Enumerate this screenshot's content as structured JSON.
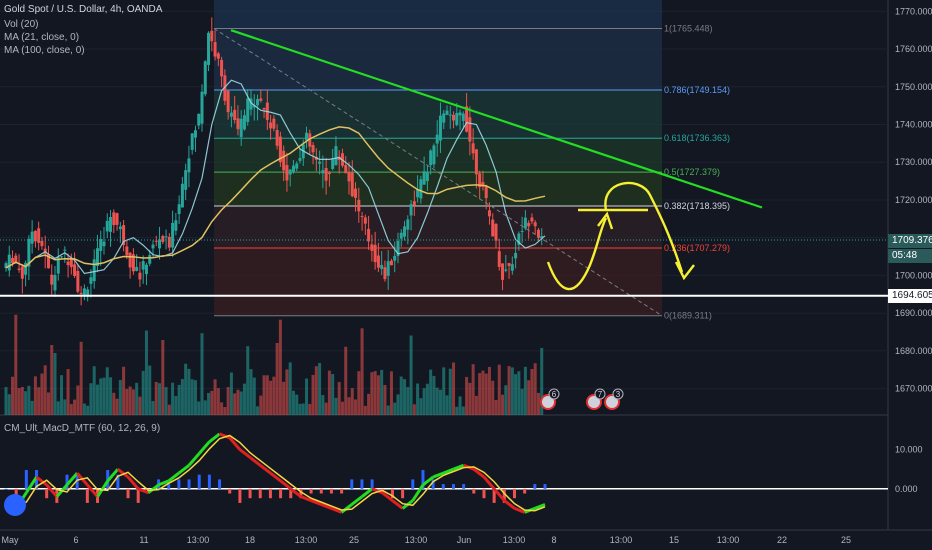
{
  "header": {
    "symbol_title": "Gold Spot / U.S. Dollar, 4h, OANDA",
    "indicators": [
      "Vol (20)",
      "MA (21, close, 0)",
      "MA (100, close, 0)"
    ]
  },
  "macd_panel": {
    "title": "CM_Ult_MacD_MTF (60, 12, 26, 9)",
    "y_ticks": [
      "10.000",
      "0.000"
    ]
  },
  "price_axis": {
    "ticks": [
      "1770.000",
      "1760.000",
      "1750.000",
      "1740.000",
      "1730.000",
      "1720.000",
      "1710.000",
      "1700.000",
      "1690.000",
      "1680.000",
      "1670.000"
    ],
    "current_price": "1709.376",
    "countdown": "05:48",
    "support_price": "1694.605"
  },
  "time_axis": {
    "ticks": [
      "May",
      "6",
      "11",
      "13:00",
      "18",
      "13:00",
      "25",
      "13:00",
      "Jun",
      "13:00",
      "8",
      "13:00",
      "15",
      "13:00",
      "22",
      "25"
    ]
  },
  "fib_levels": [
    {
      "ratio": "1",
      "price": "1765.448",
      "color": "#787b86"
    },
    {
      "ratio": "0.786",
      "price": "1749.154",
      "color": "#5b9cf6"
    },
    {
      "ratio": "0.618",
      "price": "1736.363",
      "color": "#26a69a"
    },
    {
      "ratio": "0.5",
      "price": "1727.379",
      "color": "#4caf50"
    },
    {
      "ratio": "0.382",
      "price": "1718.395",
      "color": "#d1d4dc"
    },
    {
      "ratio": "0.236",
      "price": "1707.279",
      "color": "#f44336"
    },
    {
      "ratio": "0",
      "price": "1689.311",
      "color": "#787b86"
    }
  ],
  "event_badges": [
    "6",
    "7",
    "3"
  ],
  "colors": {
    "bull": "#26a69a",
    "bear": "#ef5350",
    "trendline": "#22dd22",
    "annotation": "#f5f032",
    "ma21": "#9ad9e6",
    "ma100": "#e0c060",
    "macd_hist_pos": "#2962ff",
    "macd_hist_neg": "#ef5350",
    "background": "#131722"
  },
  "chart_data": {
    "type": "candlestick",
    "title": "Gold Spot / U.S. Dollar, 4h, OANDA",
    "ylim": [
      1663,
      1773
    ],
    "y_ticks": [
      1770,
      1760,
      1750,
      1740,
      1730,
      1720,
      1710,
      1700,
      1690,
      1680,
      1670
    ],
    "x_labels": [
      "May",
      "6",
      "11",
      "13:00",
      "18",
      "13:00",
      "25",
      "13:00",
      "Jun",
      "13:00",
      "8",
      "13:00",
      "15",
      "13:00",
      "22",
      "25"
    ],
    "close_path": [
      1702,
      1705,
      1700,
      1712,
      1708,
      1698,
      1706,
      1704,
      1694,
      1700,
      1708,
      1716,
      1712,
      1704,
      1700,
      1706,
      1710,
      1708,
      1720,
      1733,
      1742,
      1765,
      1756,
      1744,
      1738,
      1745,
      1748,
      1742,
      1735,
      1726,
      1731,
      1736,
      1730,
      1726,
      1733,
      1728,
      1720,
      1712,
      1705,
      1700,
      1706,
      1714,
      1720,
      1726,
      1734,
      1744,
      1740,
      1744,
      1732,
      1722,
      1712,
      1700,
      1704,
      1713,
      1716,
      1709
    ],
    "macd_path": [
      -3,
      -5,
      -1,
      3,
      1,
      -2,
      1,
      4,
      1,
      -2,
      2,
      5,
      3,
      0,
      -1,
      1,
      2,
      4,
      6,
      9,
      12,
      14,
      13,
      10,
      8,
      6,
      4,
      2,
      0,
      -2,
      -3,
      -4,
      -5,
      -6,
      -4,
      -2,
      0,
      -1,
      -3,
      -5,
      -3,
      1,
      3,
      4,
      5,
      6,
      5,
      3,
      0,
      -3,
      -5,
      -6,
      -5,
      -4
    ],
    "trendline_points": [
      [
        20,
        1765
      ],
      [
        68,
        1718
      ]
    ],
    "support_level": 1694.605,
    "current_price": 1709.376
  }
}
